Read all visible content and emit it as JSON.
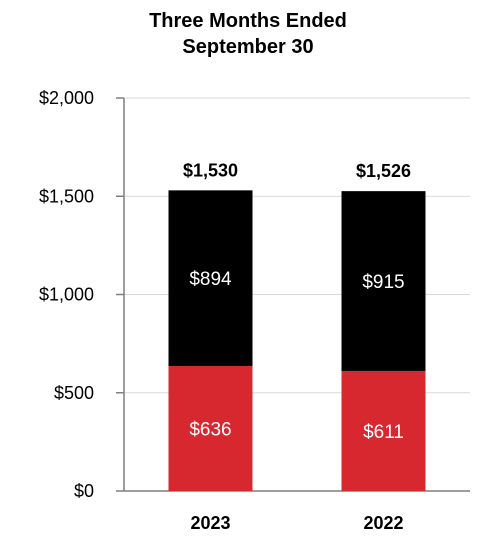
{
  "chart_data": {
    "type": "bar",
    "stacked": true,
    "title": [
      "Three Months Ended",
      "September 30"
    ],
    "categories": [
      "2023",
      "2022"
    ],
    "series": [
      {
        "values": [
          636,
          611
        ],
        "color": "#d7282f",
        "labels": [
          "$636",
          "$611"
        ]
      },
      {
        "values": [
          894,
          915
        ],
        "color": "#000000",
        "labels": [
          "$894",
          "$915"
        ]
      }
    ],
    "totals": [
      "$1,530",
      "$1,526"
    ],
    "ylim": [
      0,
      2000
    ],
    "yticks": [
      0,
      500,
      1000,
      1500,
      2000
    ],
    "ytick_labels": [
      "$0",
      "$500",
      "$1,000",
      "$1,500",
      "$2,000"
    ],
    "grid": true,
    "gridline_color": "#d9d9d9",
    "axis_color": "#7f7f7f"
  }
}
